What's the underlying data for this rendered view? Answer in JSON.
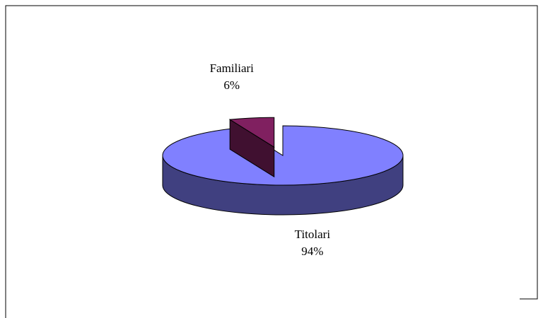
{
  "chart_data": {
    "type": "pie",
    "categories": [
      "Titolari",
      "Familiari"
    ],
    "values": [
      94,
      6
    ],
    "value_labels": [
      "94%",
      "6%"
    ],
    "colors": [
      "#8080ff",
      "#802060"
    ],
    "explode": [
      false,
      true
    ]
  }
}
